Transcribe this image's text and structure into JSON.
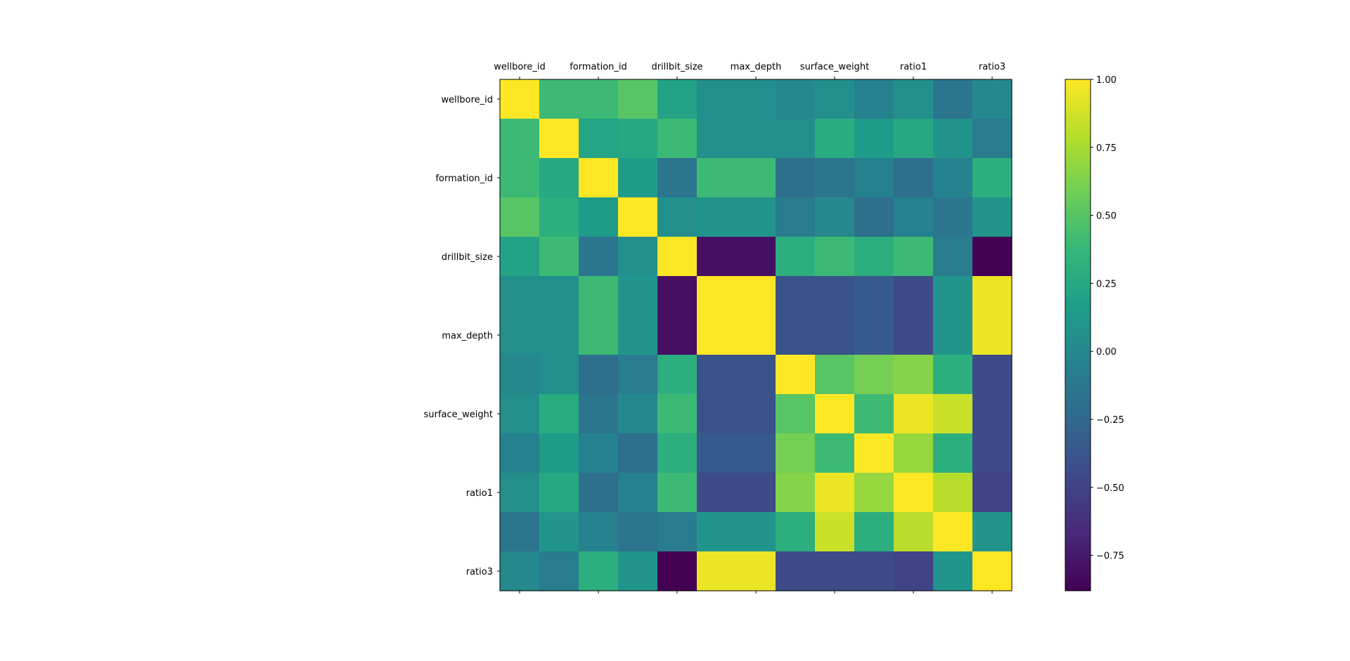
{
  "chart_data": {
    "type": "heatmap",
    "colormap": "viridis",
    "x_tick_labels": [
      "wellbore_id",
      "formation_id",
      "drillbit_size",
      "max_depth",
      "surface_weight",
      "ratio1",
      "ratio3"
    ],
    "y_tick_labels": [
      "wellbore_id",
      "formation_id",
      "drillbit_size",
      "max_depth",
      "surface_weight",
      "ratio1",
      "ratio3"
    ],
    "x_ticks_on_top": true,
    "label_every": 2,
    "n_rows": 13,
    "n_cols": 13,
    "vmin": -0.88,
    "vmax": 1.0,
    "colorbar_ticks": [
      1.0,
      0.75,
      0.5,
      0.25,
      0.0,
      -0.25,
      -0.5,
      -0.75
    ],
    "colorbar_tick_labels": [
      "1.00",
      "0.75",
      "0.50",
      "0.25",
      "0.00",
      "−0.25",
      "−0.50",
      "−0.75"
    ],
    "values": [
      [
        1.0,
        0.4,
        0.4,
        0.5,
        0.2,
        0.05,
        0.05,
        0.0,
        0.05,
        -0.05,
        0.05,
        -0.15,
        0.0
      ],
      [
        0.4,
        1.0,
        0.22,
        0.25,
        0.4,
        0.05,
        0.05,
        0.05,
        0.28,
        0.15,
        0.25,
        0.1,
        -0.1
      ],
      [
        0.4,
        0.25,
        1.0,
        0.15,
        -0.15,
        0.4,
        0.4,
        -0.2,
        -0.15,
        -0.05,
        -0.2,
        -0.05,
        0.3
      ],
      [
        0.5,
        0.3,
        0.15,
        1.0,
        0.05,
        0.1,
        0.1,
        -0.1,
        0.0,
        -0.2,
        -0.05,
        -0.15,
        0.1
      ],
      [
        0.2,
        0.4,
        -0.15,
        0.05,
        1.0,
        -0.8,
        -0.8,
        0.3,
        0.4,
        0.3,
        0.4,
        -0.1,
        -0.88
      ],
      [
        0.05,
        0.05,
        0.4,
        0.1,
        -0.8,
        1.0,
        1.0,
        -0.4,
        -0.4,
        -0.35,
        -0.45,
        0.1,
        0.95
      ],
      [
        0.05,
        0.05,
        0.4,
        0.1,
        -0.8,
        1.0,
        1.0,
        -0.4,
        -0.4,
        -0.35,
        -0.45,
        0.1,
        0.95
      ],
      [
        0.0,
        0.05,
        -0.2,
        -0.1,
        0.3,
        -0.4,
        -0.4,
        1.0,
        0.5,
        0.6,
        0.65,
        0.3,
        -0.45
      ],
      [
        0.05,
        0.28,
        -0.15,
        0.0,
        0.4,
        -0.4,
        -0.4,
        0.5,
        1.0,
        0.4,
        0.95,
        0.85,
        -0.45
      ],
      [
        -0.05,
        0.15,
        -0.05,
        -0.2,
        0.3,
        -0.35,
        -0.35,
        0.6,
        0.4,
        1.0,
        0.7,
        0.3,
        -0.45
      ],
      [
        0.05,
        0.25,
        -0.2,
        -0.05,
        0.4,
        -0.45,
        -0.45,
        0.65,
        0.95,
        0.7,
        1.0,
        0.8,
        -0.5
      ],
      [
        -0.15,
        0.1,
        -0.05,
        -0.15,
        -0.1,
        0.1,
        0.1,
        0.3,
        0.85,
        0.3,
        0.8,
        1.0,
        0.1
      ],
      [
        0.0,
        -0.1,
        0.3,
        0.1,
        -0.88,
        0.95,
        0.95,
        -0.45,
        -0.45,
        -0.45,
        -0.5,
        0.1,
        1.0
      ]
    ]
  }
}
